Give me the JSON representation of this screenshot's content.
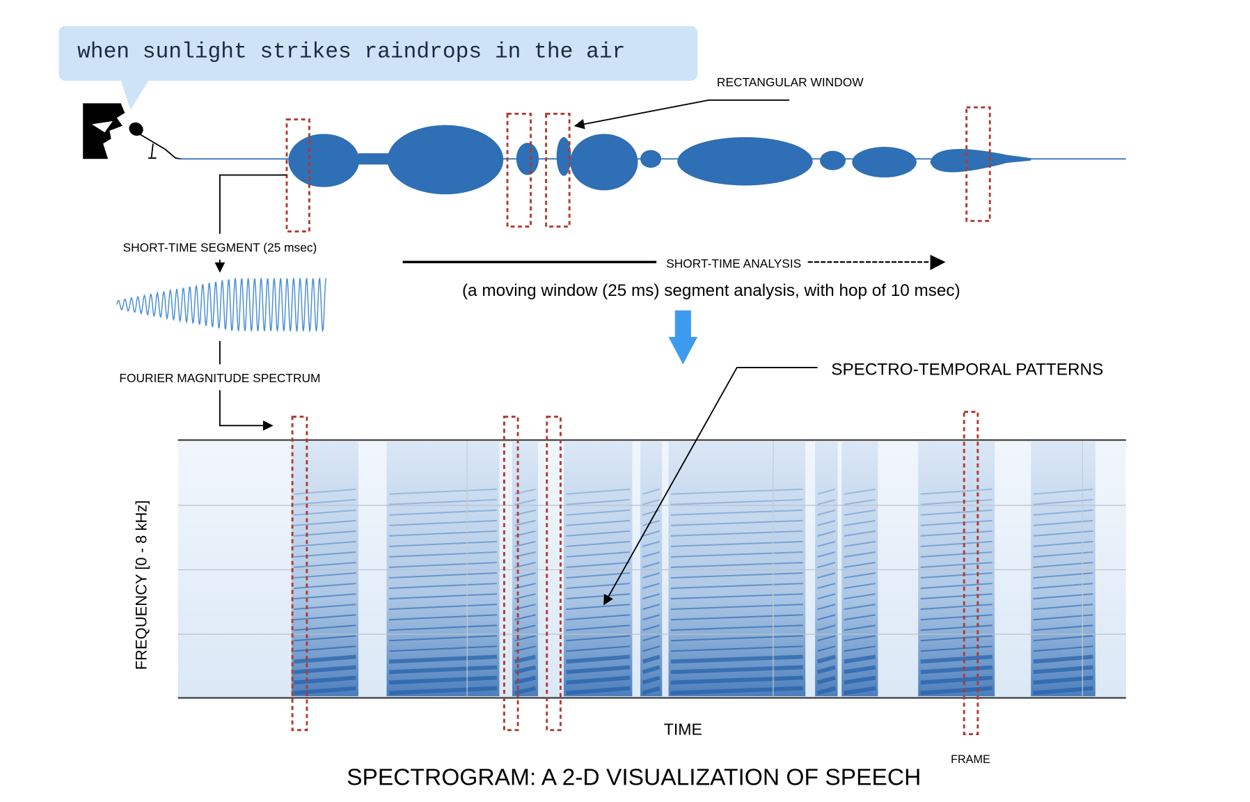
{
  "speech": "when sunlight strikes raindrops in the air",
  "labels": {
    "rectangular_window": "RECTANGULAR WINDOW",
    "short_time_segment": "SHORT-TIME SEGMENT (25 msec)",
    "short_time_analysis": "SHORT-TIME ANALYSIS",
    "analysis_note": "(a moving window (25 ms) segment analysis, with hop of 10 msec)",
    "fourier": "FOURIER MAGNITUDE SPECTRUM",
    "patterns": "SPECTRO-TEMPORAL PATTERNS",
    "frequency_axis": "FREQUENCY [0 - 8 kHz]",
    "time_axis": "TIME",
    "frame": "FRAME",
    "title": "SPECTROGRAM: A 2-D VISUALIZATION OF SPEECH"
  }
}
